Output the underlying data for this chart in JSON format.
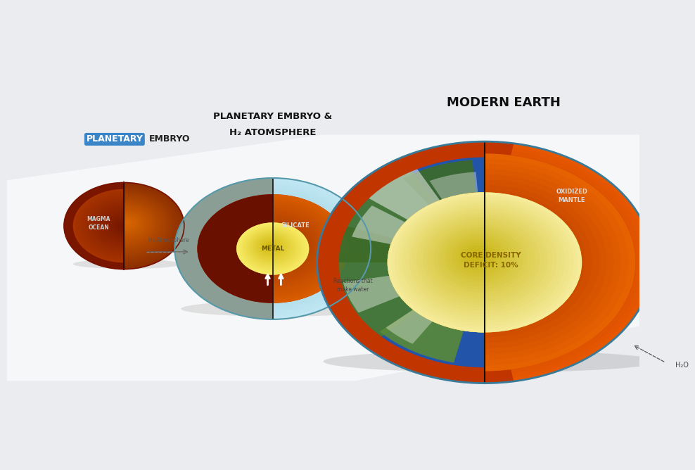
{
  "bg_color": "#eaecf0",
  "title1_word1": "PLANETARY",
  "title1_word2": "EMBRYO",
  "title2_line1": "PLANETARY EMBRYO &",
  "title2_line2": "H₂ ATOMSPHERE",
  "title3": "MODERN EARTH",
  "p1x": 0.185,
  "p1y": 0.52,
  "p1r": 0.095,
  "p2x": 0.42,
  "p2y": 0.47,
  "p2r": 0.155,
  "p3x": 0.755,
  "p3y": 0.44,
  "p3r": 0.265,
  "arrow_label": "H₂ Atmosphere",
  "reaction_label": "Reactions that\nmake water",
  "magma_label": "MAGMA\nOCEAN",
  "silicate_label": "SILICATE",
  "metal_label": "METAL",
  "oxidized_label": "OXIDIZED\nMANTLE",
  "core_density_label": "CORE DENSITY\nDEFICIT: 10%",
  "h2o_label": "H₂O"
}
